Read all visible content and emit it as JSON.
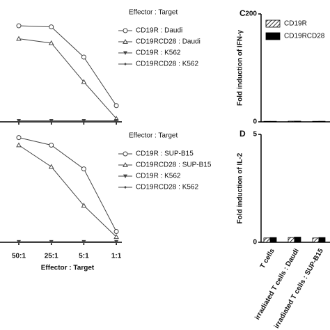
{
  "chart_data": [
    {
      "type": "line",
      "legend_title": "Effector : Target",
      "ylim": [
        0,
        100
      ],
      "series": [
        {
          "name": "CD19R : Daudi",
          "color": "#444444",
          "marker": "circle-open",
          "values": [
            89,
            88,
            60,
            15
          ]
        },
        {
          "name": "CD19RCD28 : Daudi",
          "color": "#444444",
          "marker": "triangle-open",
          "values": [
            77,
            73,
            37,
            3
          ]
        },
        {
          "name": "CD19R : K562",
          "color": "#444444",
          "marker": "triangle-down",
          "values": [
            1,
            1,
            1,
            1
          ]
        },
        {
          "name": "CD19RCD28 : K562",
          "color": "#444444",
          "marker": "diamond",
          "values": [
            1,
            1,
            1,
            1
          ]
        }
      ]
    },
    {
      "type": "line",
      "legend_title": "Effector : Target",
      "x_label": "Effector : Target",
      "categories": [
        "50:1",
        "25:1",
        "5:1",
        "1:1"
      ],
      "ylim": [
        0,
        100
      ],
      "series": [
        {
          "name": "CD19R : SUP-B15",
          "color": "#444444",
          "marker": "circle-open",
          "values": [
            97,
            90,
            68,
            10
          ]
        },
        {
          "name": "CD19RCD28 : SUP-B15",
          "color": "#444444",
          "marker": "triangle-open",
          "values": [
            90,
            70,
            34,
            5
          ]
        },
        {
          "name": "CD19R : K562",
          "color": "#444444",
          "marker": "triangle-down",
          "values": [
            0.5,
            0.5,
            0.5,
            0.5
          ]
        },
        {
          "name": "CD19RCD28 : K562",
          "color": "#444444",
          "marker": "diamond",
          "values": [
            0.5,
            0.5,
            0.5,
            0.5
          ]
        }
      ]
    },
    {
      "type": "bar",
      "panel": "C",
      "y_label": "Fold induction of IFN-γ",
      "ylim": [
        0,
        200
      ],
      "yticks": [
        0,
        200
      ],
      "series": [
        {
          "name": "CD19R",
          "color": "hatch",
          "values": [
            1,
            1.2,
            1
          ]
        },
        {
          "name": "CD19RCD28",
          "color": "#000000",
          "values": [
            1,
            1.3,
            1.1
          ]
        }
      ]
    },
    {
      "type": "bar",
      "panel": "D",
      "y_label": "Fold induction of IL-2",
      "ylim": [
        0,
        5
      ],
      "yticks": [
        0,
        5
      ],
      "categories": [
        "T cells",
        "irradiated T cells : Daudi",
        "irradiated T cells : SUP-B15"
      ],
      "series": [
        {
          "name": "CD19R",
          "color": "hatch",
          "values": [
            0.2,
            0.22,
            0.2
          ]
        },
        {
          "name": "CD19RCD28",
          "color": "#000000",
          "values": [
            0.22,
            0.24,
            0.22
          ]
        }
      ]
    }
  ]
}
